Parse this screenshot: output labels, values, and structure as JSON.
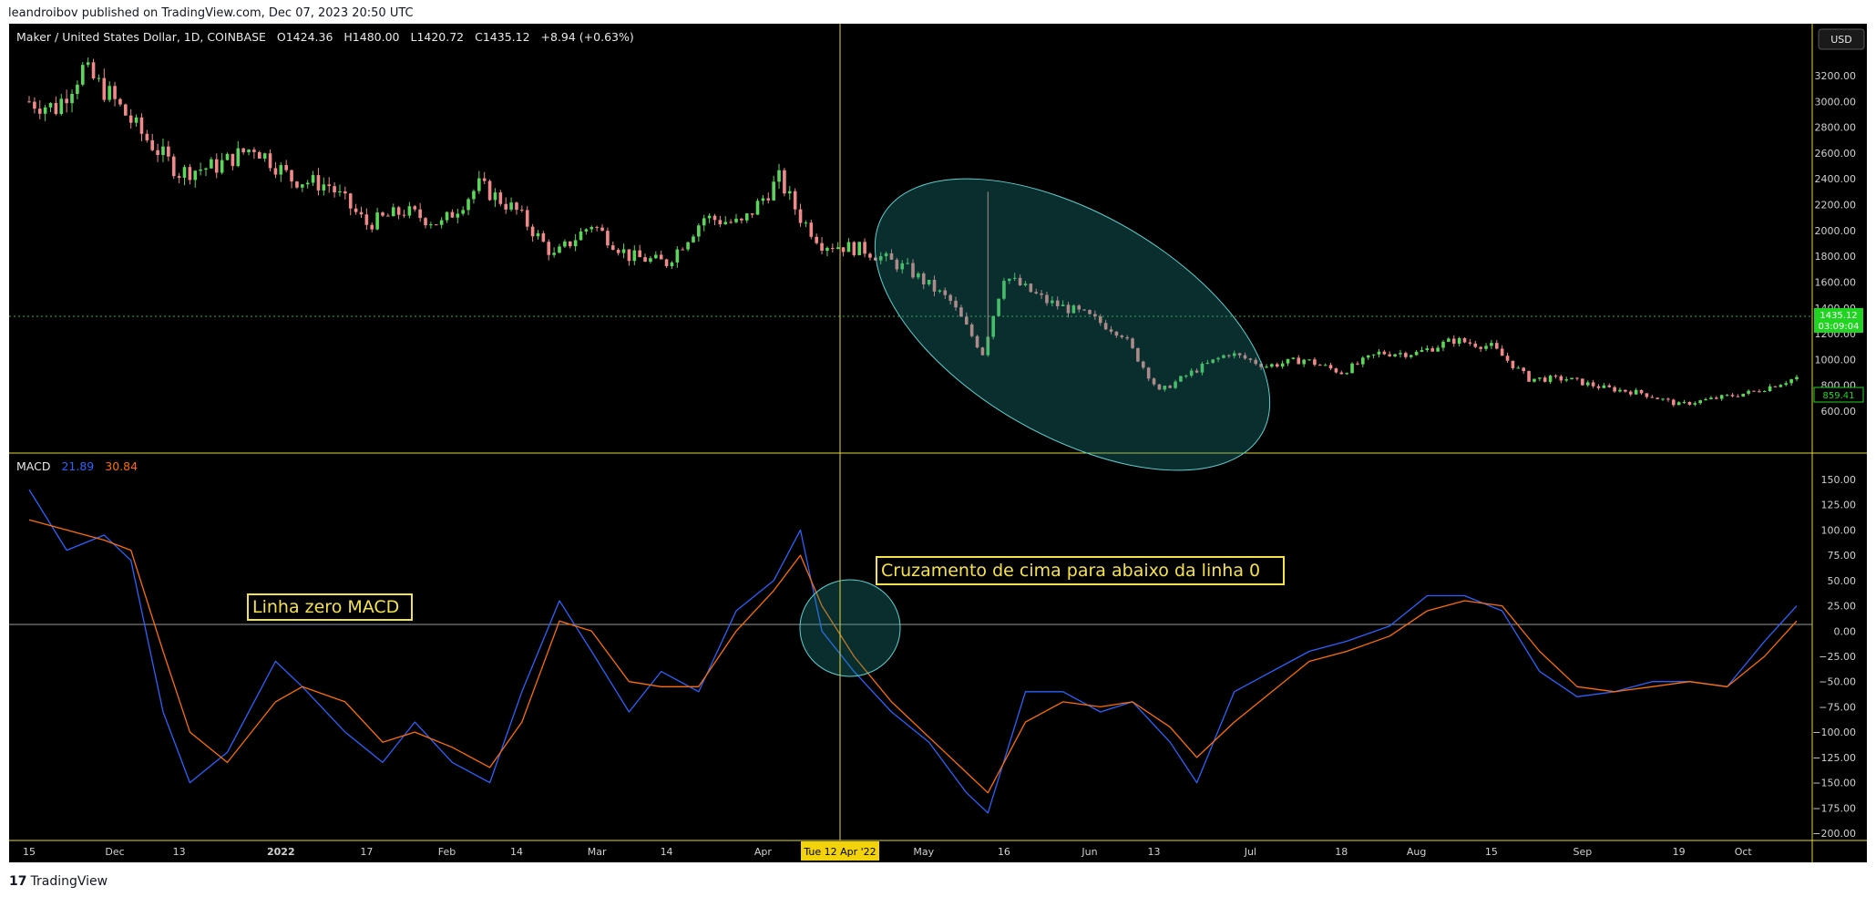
{
  "header": {
    "publisher": "leandroibov published on TradingView.com, Dec 07, 2023 20:50 UTC"
  },
  "footer": {
    "logo_mark": "17",
    "brand": "TradingView"
  },
  "currency_button": "USD",
  "price_legend": {
    "symbol": "Maker / United States Dollar, 1D, COINBASE",
    "open": "O1424.36",
    "high": "H1480.00",
    "low": "L1420.72",
    "close": "C1435.12",
    "change": "+8.94 (+0.63%)"
  },
  "price_badges": {
    "last_price": "1435.12",
    "countdown": "03:09:04",
    "other_level": "859.41"
  },
  "macd_legend": {
    "name": "MACD",
    "macd_value": "21.89",
    "signal_value": "30.84"
  },
  "crosshair_label": "Tue 12 Apr '22",
  "annotations": {
    "zero_line": "Linha zero MACD",
    "cross": "Cruzamento de cima para abaixo da linha 0"
  },
  "colors": {
    "up": "#5bd65b",
    "down": "#f08a8a",
    "macd": "#2962ff",
    "signal": "#ff6d00",
    "crosshair": "#e5d43a",
    "annotation_text": "#f5e24a",
    "ellipse": "#1f8c8c"
  },
  "chart_data": [
    {
      "type": "candlestick",
      "title": "Maker / United States Dollar, 1D, COINBASE",
      "y_axis_ticks": [
        "3200.00",
        "3000.00",
        "2800.00",
        "2600.00",
        "2400.00",
        "2200.00",
        "2000.00",
        "1800.00",
        "1600.00",
        "1400.00",
        "1200.00",
        "1000.00",
        "800.00",
        "600.00"
      ],
      "ylim": [
        500,
        3400
      ],
      "x_axis_ticks": [
        "15",
        "Dec",
        "13",
        "2022",
        "17",
        "Feb",
        "14",
        "Mar",
        "14",
        "Apr",
        "May",
        "16",
        "Jun",
        "13",
        "Jul",
        "18",
        "Aug",
        "15",
        "Sep",
        "19",
        "Oct"
      ],
      "x_range": [
        "2021-11-15",
        "2022-10-11"
      ],
      "close_path": [
        [
          "2021-11-15",
          3000
        ],
        [
          "2021-11-20",
          2950
        ],
        [
          "2021-11-25",
          3250
        ],
        [
          "2021-11-30",
          3050
        ],
        [
          "2021-12-06",
          2750
        ],
        [
          "2021-12-13",
          2450
        ],
        [
          "2021-12-20",
          2500
        ],
        [
          "2021-12-27",
          2650
        ],
        [
          "2022-01-03",
          2400
        ],
        [
          "2022-01-10",
          2350
        ],
        [
          "2022-01-17",
          2050
        ],
        [
          "2022-01-24",
          2150
        ],
        [
          "2022-01-31",
          2050
        ],
        [
          "2022-02-07",
          2350
        ],
        [
          "2022-02-14",
          2150
        ],
        [
          "2022-02-21",
          1800
        ],
        [
          "2022-02-28",
          2050
        ],
        [
          "2022-03-07",
          1800
        ],
        [
          "2022-03-14",
          1750
        ],
        [
          "2022-03-21",
          2100
        ],
        [
          "2022-03-28",
          2050
        ],
        [
          "2022-04-04",
          2400
        ],
        [
          "2022-04-08",
          2100
        ],
        [
          "2022-04-12",
          1900
        ],
        [
          "2022-04-20",
          1850
        ],
        [
          "2022-04-28",
          1700
        ],
        [
          "2022-05-06",
          1450
        ],
        [
          "2022-05-12",
          1050
        ],
        [
          "2022-05-16",
          1650
        ],
        [
          "2022-05-24",
          1450
        ],
        [
          "2022-05-31",
          1350
        ],
        [
          "2022-06-07",
          1200
        ],
        [
          "2022-06-14",
          750
        ],
        [
          "2022-06-20",
          900
        ],
        [
          "2022-06-27",
          1050
        ],
        [
          "2022-07-04",
          950
        ],
        [
          "2022-07-11",
          1000
        ],
        [
          "2022-07-18",
          900
        ],
        [
          "2022-07-25",
          1050
        ],
        [
          "2022-08-01",
          1050
        ],
        [
          "2022-08-08",
          1150
        ],
        [
          "2022-08-15",
          1100
        ],
        [
          "2022-08-22",
          850
        ],
        [
          "2022-08-29",
          850
        ],
        [
          "2022-09-05",
          780
        ],
        [
          "2022-09-12",
          740
        ],
        [
          "2022-09-19",
          650
        ],
        [
          "2022-09-26",
          700
        ],
        [
          "2022-10-03",
          750
        ],
        [
          "2022-10-11",
          860
        ]
      ],
      "last_close": 1435.12
    },
    {
      "type": "line",
      "title": "MACD",
      "y_axis_ticks": [
        "150.00",
        "125.00",
        "100.00",
        "75.00",
        "50.00",
        "25.00",
        "0.00",
        "−25.00",
        "−50.00",
        "−75.00",
        "−100.00",
        "−125.00",
        "−150.00",
        "−175.00",
        "−200.00"
      ],
      "ylim": [
        -200,
        160
      ],
      "series": [
        {
          "name": "MACD",
          "points": [
            [
              "2021-11-15",
              140
            ],
            [
              "2021-11-22",
              80
            ],
            [
              "2021-11-29",
              95
            ],
            [
              "2021-12-04",
              70
            ],
            [
              "2021-12-10",
              -80
            ],
            [
              "2021-12-15",
              -150
            ],
            [
              "2021-12-22",
              -120
            ],
            [
              "2021-12-31",
              -30
            ],
            [
              "2022-01-05",
              -55
            ],
            [
              "2022-01-13",
              -100
            ],
            [
              "2022-01-20",
              -130
            ],
            [
              "2022-01-26",
              -90
            ],
            [
              "2022-02-02",
              -130
            ],
            [
              "2022-02-09",
              -150
            ],
            [
              "2022-02-15",
              -60
            ],
            [
              "2022-02-22",
              30
            ],
            [
              "2022-02-28",
              -20
            ],
            [
              "2022-03-07",
              -80
            ],
            [
              "2022-03-13",
              -40
            ],
            [
              "2022-03-20",
              -60
            ],
            [
              "2022-03-27",
              20
            ],
            [
              "2022-04-03",
              50
            ],
            [
              "2022-04-08",
              100
            ],
            [
              "2022-04-12",
              0
            ],
            [
              "2022-04-18",
              -40
            ],
            [
              "2022-04-25",
              -80
            ],
            [
              "2022-05-02",
              -110
            ],
            [
              "2022-05-09",
              -160
            ],
            [
              "2022-05-13",
              -180
            ],
            [
              "2022-05-20",
              -60
            ],
            [
              "2022-05-27",
              -60
            ],
            [
              "2022-06-03",
              -80
            ],
            [
              "2022-06-09",
              -70
            ],
            [
              "2022-06-16",
              -110
            ],
            [
              "2022-06-21",
              -150
            ],
            [
              "2022-06-28",
              -60
            ],
            [
              "2022-07-05",
              -40
            ],
            [
              "2022-07-12",
              -20
            ],
            [
              "2022-07-19",
              -10
            ],
            [
              "2022-07-27",
              5
            ],
            [
              "2022-08-03",
              35
            ],
            [
              "2022-08-10",
              35
            ],
            [
              "2022-08-17",
              20
            ],
            [
              "2022-08-24",
              -40
            ],
            [
              "2022-08-31",
              -65
            ],
            [
              "2022-09-07",
              -60
            ],
            [
              "2022-09-14",
              -50
            ],
            [
              "2022-09-21",
              -50
            ],
            [
              "2022-09-28",
              -55
            ],
            [
              "2022-10-05",
              -10
            ],
            [
              "2022-10-11",
              25
            ]
          ]
        },
        {
          "name": "Signal",
          "points": [
            [
              "2021-11-15",
              110
            ],
            [
              "2021-11-22",
              100
            ],
            [
              "2021-11-29",
              90
            ],
            [
              "2021-12-04",
              80
            ],
            [
              "2021-12-10",
              -20
            ],
            [
              "2021-12-15",
              -100
            ],
            [
              "2021-12-22",
              -130
            ],
            [
              "2021-12-31",
              -70
            ],
            [
              "2022-01-05",
              -55
            ],
            [
              "2022-01-13",
              -70
            ],
            [
              "2022-01-20",
              -110
            ],
            [
              "2022-01-26",
              -100
            ],
            [
              "2022-02-02",
              -115
            ],
            [
              "2022-02-09",
              -135
            ],
            [
              "2022-02-15",
              -90
            ],
            [
              "2022-02-22",
              10
            ],
            [
              "2022-02-28",
              0
            ],
            [
              "2022-03-07",
              -50
            ],
            [
              "2022-03-13",
              -55
            ],
            [
              "2022-03-20",
              -55
            ],
            [
              "2022-03-27",
              0
            ],
            [
              "2022-04-03",
              40
            ],
            [
              "2022-04-08",
              75
            ],
            [
              "2022-04-12",
              25
            ],
            [
              "2022-04-18",
              -25
            ],
            [
              "2022-04-25",
              -70
            ],
            [
              "2022-05-02",
              -105
            ],
            [
              "2022-05-09",
              -140
            ],
            [
              "2022-05-13",
              -160
            ],
            [
              "2022-05-20",
              -90
            ],
            [
              "2022-05-27",
              -70
            ],
            [
              "2022-06-03",
              -75
            ],
            [
              "2022-06-09",
              -70
            ],
            [
              "2022-06-16",
              -95
            ],
            [
              "2022-06-21",
              -125
            ],
            [
              "2022-06-28",
              -90
            ],
            [
              "2022-07-05",
              -60
            ],
            [
              "2022-07-12",
              -30
            ],
            [
              "2022-07-19",
              -20
            ],
            [
              "2022-07-27",
              -5
            ],
            [
              "2022-08-03",
              20
            ],
            [
              "2022-08-10",
              30
            ],
            [
              "2022-08-17",
              25
            ],
            [
              "2022-08-24",
              -20
            ],
            [
              "2022-08-31",
              -55
            ],
            [
              "2022-09-07",
              -60
            ],
            [
              "2022-09-14",
              -55
            ],
            [
              "2022-09-21",
              -50
            ],
            [
              "2022-09-28",
              -55
            ],
            [
              "2022-10-05",
              -25
            ],
            [
              "2022-10-11",
              10
            ]
          ]
        }
      ]
    }
  ]
}
